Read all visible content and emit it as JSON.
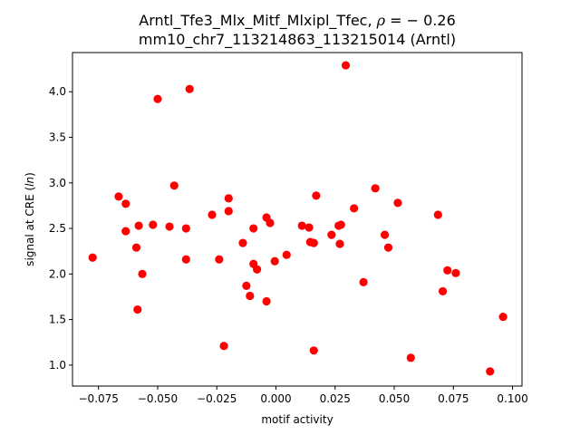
{
  "chart_data": {
    "type": "scatter",
    "title_line1_prefix": "Arntl_Tfe3_Mlx_Mitf_Mlxipl_Tfec, ",
    "title_rho_symbol": "ρ",
    "title_rho_value": " = − 0.26",
    "title_line2": "mm10_chr7_113214863_113215014 (Arntl)",
    "xlabel": "motif activity",
    "ylabel_prefix": "signal at CRE (",
    "ylabel_italic": "ln",
    "ylabel_suffix": ")",
    "xlim": [
      -0.086,
      0.104
    ],
    "ylim": [
      0.77,
      4.43
    ],
    "xticks": [
      -0.075,
      -0.05,
      -0.025,
      0.0,
      0.025,
      0.05,
      0.075,
      0.1
    ],
    "xtick_labels": [
      "−0.075",
      "−0.050",
      "−0.025",
      "0.000",
      "0.025",
      "0.050",
      "0.075",
      "0.100"
    ],
    "yticks": [
      1.0,
      1.5,
      2.0,
      2.5,
      3.0,
      3.5,
      4.0
    ],
    "ytick_labels": [
      "1.0",
      "1.5",
      "2.0",
      "2.5",
      "3.0",
      "3.5",
      "4.0"
    ],
    "marker_color": "#ff0000",
    "grid": false,
    "points": [
      {
        "x": -0.0775,
        "y": 2.18
      },
      {
        "x": -0.0665,
        "y": 2.85
      },
      {
        "x": -0.0635,
        "y": 2.77
      },
      {
        "x": -0.0635,
        "y": 2.47
      },
      {
        "x": -0.059,
        "y": 2.29
      },
      {
        "x": -0.0585,
        "y": 1.61
      },
      {
        "x": -0.058,
        "y": 2.53
      },
      {
        "x": -0.0565,
        "y": 2.0
      },
      {
        "x": -0.052,
        "y": 2.54
      },
      {
        "x": -0.05,
        "y": 3.92
      },
      {
        "x": -0.045,
        "y": 2.52
      },
      {
        "x": -0.043,
        "y": 2.97
      },
      {
        "x": -0.038,
        "y": 2.16
      },
      {
        "x": -0.038,
        "y": 2.5
      },
      {
        "x": -0.0365,
        "y": 4.03
      },
      {
        "x": -0.027,
        "y": 2.65
      },
      {
        "x": -0.024,
        "y": 2.16
      },
      {
        "x": -0.022,
        "y": 1.21
      },
      {
        "x": -0.02,
        "y": 2.83
      },
      {
        "x": -0.02,
        "y": 2.69
      },
      {
        "x": -0.014,
        "y": 2.34
      },
      {
        "x": -0.0125,
        "y": 1.87
      },
      {
        "x": -0.011,
        "y": 1.76
      },
      {
        "x": -0.0095,
        "y": 2.5
      },
      {
        "x": -0.0095,
        "y": 2.11
      },
      {
        "x": -0.008,
        "y": 2.05
      },
      {
        "x": -0.004,
        "y": 2.62
      },
      {
        "x": -0.004,
        "y": 1.7
      },
      {
        "x": -0.0025,
        "y": 2.56
      },
      {
        "x": -0.0005,
        "y": 2.14
      },
      {
        "x": 0.0045,
        "y": 2.21
      },
      {
        "x": 0.011,
        "y": 2.53
      },
      {
        "x": 0.014,
        "y": 2.51
      },
      {
        "x": 0.0145,
        "y": 2.35
      },
      {
        "x": 0.016,
        "y": 2.34
      },
      {
        "x": 0.016,
        "y": 1.16
      },
      {
        "x": 0.017,
        "y": 2.86
      },
      {
        "x": 0.0235,
        "y": 2.43
      },
      {
        "x": 0.0265,
        "y": 2.53
      },
      {
        "x": 0.027,
        "y": 2.33
      },
      {
        "x": 0.0275,
        "y": 2.54
      },
      {
        "x": 0.0295,
        "y": 4.29
      },
      {
        "x": 0.033,
        "y": 2.72
      },
      {
        "x": 0.037,
        "y": 1.91
      },
      {
        "x": 0.042,
        "y": 2.94
      },
      {
        "x": 0.046,
        "y": 2.43
      },
      {
        "x": 0.0475,
        "y": 2.29
      },
      {
        "x": 0.0515,
        "y": 2.78
      },
      {
        "x": 0.057,
        "y": 1.08
      },
      {
        "x": 0.0685,
        "y": 2.65
      },
      {
        "x": 0.0705,
        "y": 1.81
      },
      {
        "x": 0.0725,
        "y": 2.04
      },
      {
        "x": 0.076,
        "y": 2.01
      },
      {
        "x": 0.0905,
        "y": 0.93
      },
      {
        "x": 0.096,
        "y": 1.53
      }
    ]
  }
}
